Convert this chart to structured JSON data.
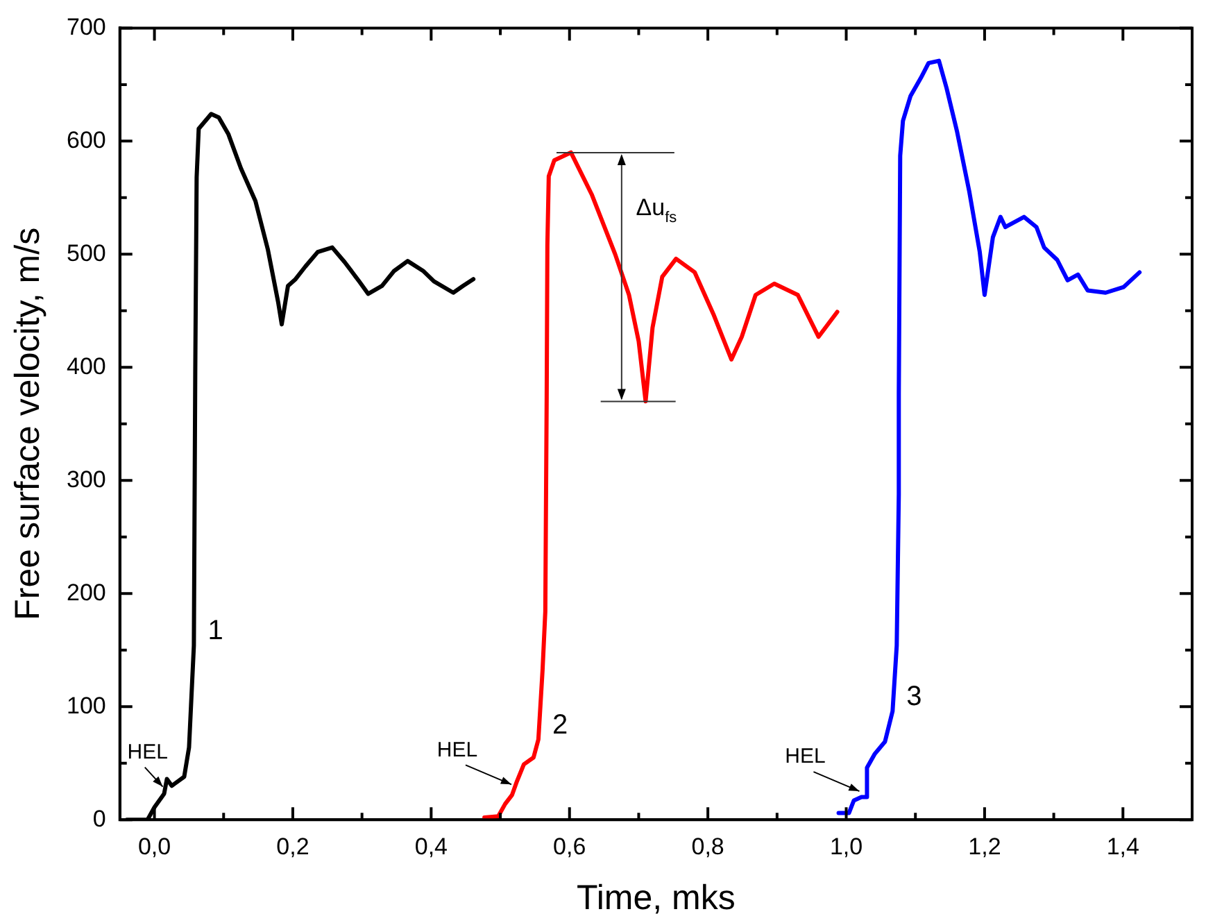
{
  "chart_data": {
    "type": "line",
    "xlabel": "Time, mks",
    "ylabel": "Free surface velocity, m/s",
    "xlim": [
      -0.05,
      1.5
    ],
    "ylim": [
      0,
      700
    ],
    "xticks": [
      {
        "value": 0,
        "label": "0,0"
      },
      {
        "value": 0.1,
        "label": null
      },
      {
        "value": 0.2,
        "label": "0,2"
      },
      {
        "value": 0.3,
        "label": null
      },
      {
        "value": 0.4,
        "label": "0,4"
      },
      {
        "value": 0.5,
        "label": null
      },
      {
        "value": 0.6,
        "label": "0,6"
      },
      {
        "value": 0.7,
        "label": null
      },
      {
        "value": 0.8,
        "label": "0,8"
      },
      {
        "value": 0.9,
        "label": null
      },
      {
        "value": 1.0,
        "label": "1,0"
      },
      {
        "value": 1.1,
        "label": null
      },
      {
        "value": 1.2,
        "label": "1,2"
      },
      {
        "value": 1.3,
        "label": null
      },
      {
        "value": 1.4,
        "label": "1,4"
      },
      {
        "value": 1.5,
        "label": null
      }
    ],
    "yticks": [
      0,
      {
        "value": 50,
        "label": null
      },
      100,
      {
        "value": 150,
        "label": null
      },
      200,
      {
        "value": 250,
        "label": null
      },
      300,
      {
        "value": 350,
        "label": null
      },
      400,
      {
        "value": 450,
        "label": null
      },
      500,
      {
        "value": 550,
        "label": null
      },
      600,
      {
        "value": 650,
        "label": null
      },
      700
    ],
    "grid": false,
    "legend": false,
    "marker": "none",
    "line_style": "solid",
    "series": [
      {
        "name": "1",
        "color": "#000000",
        "x": [
          -0.04,
          -0.01,
          0.0,
          0.014,
          0.018,
          0.025,
          0.043,
          0.05,
          0.057,
          0.059,
          0.061,
          0.064,
          0.082,
          0.093,
          0.107,
          0.125,
          0.146,
          0.164,
          0.179,
          0.184,
          0.193,
          0.204,
          0.218,
          0.236,
          0.257,
          0.275,
          0.296,
          0.309,
          0.329,
          0.346,
          0.366,
          0.389,
          0.404,
          0.432,
          0.446,
          0.461
        ],
        "values": [
          0,
          0,
          11,
          23,
          36,
          30,
          38,
          64,
          154,
          397,
          568,
          611,
          624,
          621,
          606,
          576,
          547,
          504,
          457,
          438,
          472,
          478,
          489,
          502,
          506,
          493,
          476,
          465,
          472,
          485,
          494,
          485,
          476,
          466,
          472,
          478
        ]
      },
      {
        "name": "2",
        "color": "#ff0000",
        "x": [
          0.477,
          0.497,
          0.507,
          0.517,
          0.524,
          0.534,
          0.548,
          0.555,
          0.561,
          0.565,
          0.567,
          0.568,
          0.57,
          0.578,
          0.602,
          0.632,
          0.666,
          0.686,
          0.7,
          0.71,
          0.72,
          0.734,
          0.754,
          0.781,
          0.808,
          0.834,
          0.849,
          0.869,
          0.896,
          0.93,
          0.96,
          0.987
        ],
        "values": [
          2,
          3,
          14,
          22,
          34,
          49,
          55,
          71,
          132,
          184,
          374,
          508,
          569,
          583,
          590,
          553,
          500,
          464,
          423,
          370,
          435,
          480,
          496,
          484,
          447,
          407,
          427,
          464,
          474,
          464,
          427,
          449
        ]
      },
      {
        "name": "3",
        "color": "#0000ff",
        "x": [
          0.989,
          1.004,
          1.011,
          1.022,
          1.03,
          1.03,
          1.041,
          1.056,
          1.067,
          1.073,
          1.076,
          1.076,
          1.078,
          1.082,
          1.093,
          1.108,
          1.119,
          1.134,
          1.145,
          1.16,
          1.178,
          1.193,
          1.2,
          1.212,
          1.223,
          1.23,
          1.257,
          1.275,
          1.286,
          1.305,
          1.32,
          1.335,
          1.349,
          1.375,
          1.401,
          1.424
        ],
        "values": [
          6,
          6,
          17,
          20,
          20,
          46,
          58,
          69,
          96,
          154,
          288,
          377,
          587,
          618,
          640,
          656,
          669,
          671,
          647,
          609,
          555,
          502,
          464,
          515,
          533,
          524,
          533,
          524,
          506,
          495,
          477,
          482,
          468,
          466,
          471,
          484
        ]
      }
    ],
    "annotations": [
      {
        "text": "HEL",
        "x": 0.018,
        "y": 28
      },
      {
        "text": "HEL",
        "x": 0.522,
        "y": 30
      },
      {
        "text": "HEL",
        "x": 1.025,
        "y": 24
      },
      "Δu$_{fs}$"
    ]
  }
}
